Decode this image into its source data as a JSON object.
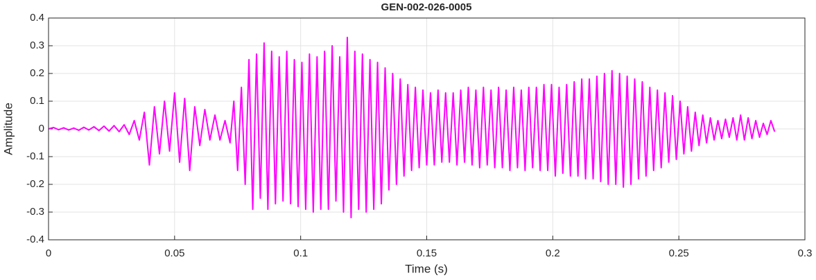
{
  "chart_data": {
    "type": "line",
    "title": "GEN-002-026-0005",
    "x_label": "Time (s)",
    "y_label": "Amplitude",
    "color": "#ff00ff",
    "grid": true,
    "xlim": [
      0,
      0.3
    ],
    "xticks": [
      0,
      0.05,
      0.1,
      0.15,
      0.2,
      0.25,
      0.3
    ],
    "ylim": [
      -0.4,
      0.4
    ],
    "yticks": [
      -0.4,
      -0.3,
      -0.2,
      -0.1,
      0,
      0.1,
      0.2,
      0.3,
      0.4
    ],
    "x": [
      0,
      0.002,
      0.004,
      0.006,
      0.008,
      0.01,
      0.012,
      0.014,
      0.016,
      0.018,
      0.02,
      0.022,
      0.024,
      0.026,
      0.028,
      0.03,
      0.032,
      0.034,
      0.036,
      0.038,
      0.04,
      0.042,
      0.044,
      0.046,
      0.048,
      0.05,
      0.052,
      0.054,
      0.056,
      0.058,
      0.06,
      0.062,
      0.064,
      0.066,
      0.068,
      0.07,
      0.072,
      0.0735,
      0.075,
      0.0765,
      0.078,
      0.0795,
      0.081,
      0.0825,
      0.084,
      0.0855,
      0.087,
      0.0885,
      0.09,
      0.0915,
      0.093,
      0.0945,
      0.096,
      0.0975,
      0.099,
      0.1005,
      0.102,
      0.1035,
      0.105,
      0.1065,
      0.108,
      0.1095,
      0.111,
      0.1125,
      0.114,
      0.1155,
      0.117,
      0.1185,
      0.12,
      0.1215,
      0.123,
      0.1245,
      0.126,
      0.1275,
      0.129,
      0.1305,
      0.132,
      0.1335,
      0.135,
      0.1365,
      0.138,
      0.1395,
      0.141,
      0.1425,
      0.144,
      0.1455,
      0.147,
      0.1485,
      0.15,
      0.1515,
      0.153,
      0.1545,
      0.156,
      0.1575,
      0.159,
      0.1605,
      0.162,
      0.1635,
      0.165,
      0.1665,
      0.168,
      0.1695,
      0.171,
      0.1725,
      0.174,
      0.1755,
      0.177,
      0.1785,
      0.18,
      0.1815,
      0.183,
      0.1845,
      0.186,
      0.1875,
      0.189,
      0.1905,
      0.192,
      0.1935,
      0.195,
      0.1965,
      0.198,
      0.1995,
      0.201,
      0.2025,
      0.204,
      0.2055,
      0.207,
      0.2085,
      0.21,
      0.2115,
      0.213,
      0.2145,
      0.216,
      0.2175,
      0.219,
      0.2205,
      0.222,
      0.2235,
      0.225,
      0.2265,
      0.228,
      0.2295,
      0.231,
      0.2325,
      0.234,
      0.2355,
      0.237,
      0.2385,
      0.24,
      0.2415,
      0.243,
      0.2445,
      0.246,
      0.2475,
      0.249,
      0.2505,
      0.252,
      0.2535,
      0.255,
      0.2565,
      0.258,
      0.2595,
      0.261,
      0.2625,
      0.264,
      0.2655,
      0.267,
      0.2685,
      0.27,
      0.2715,
      0.273,
      0.2745,
      0.276,
      0.2775,
      0.279,
      0.2805,
      0.282,
      0.2835,
      0.285,
      0.2865,
      0.288
    ],
    "values": [
      0,
      0.005,
      -0.003,
      0.004,
      -0.004,
      0.003,
      -0.005,
      0.006,
      -0.004,
      0.008,
      -0.006,
      0.01,
      -0.008,
      0.012,
      -0.01,
      0.015,
      -0.02,
      0.03,
      -0.04,
      0.06,
      -0.13,
      0.08,
      -0.09,
      0.1,
      -0.08,
      0.13,
      -0.12,
      0.11,
      -0.15,
      0.08,
      -0.06,
      0.07,
      -0.04,
      0.05,
      -0.04,
      0.03,
      -0.05,
      0.1,
      -0.15,
      0.15,
      -0.2,
      0.25,
      -0.29,
      0.27,
      -0.25,
      0.31,
      -0.29,
      0.28,
      -0.27,
      0.26,
      -0.26,
      0.28,
      -0.27,
      0.25,
      -0.28,
      0.24,
      -0.29,
      0.27,
      -0.3,
      0.26,
      -0.29,
      0.28,
      -0.29,
      0.3,
      -0.26,
      0.26,
      -0.3,
      0.33,
      -0.32,
      0.28,
      -0.29,
      0.27,
      -0.3,
      0.25,
      -0.29,
      0.24,
      -0.27,
      0.22,
      -0.22,
      0.2,
      -0.2,
      0.18,
      -0.17,
      0.16,
      -0.15,
      0.15,
      -0.14,
      0.14,
      -0.13,
      0.13,
      -0.13,
      0.14,
      -0.12,
      0.13,
      -0.12,
      0.13,
      -0.13,
      0.14,
      -0.12,
      0.15,
      -0.13,
      0.14,
      -0.14,
      0.15,
      -0.13,
      0.14,
      -0.14,
      0.15,
      -0.14,
      0.14,
      -0.15,
      0.15,
      -0.14,
      0.14,
      -0.15,
      0.15,
      -0.14,
      0.15,
      -0.15,
      0.16,
      -0.15,
      0.16,
      -0.17,
      0.15,
      -0.16,
      0.16,
      -0.17,
      0.17,
      -0.17,
      0.18,
      -0.18,
      0.18,
      -0.18,
      0.19,
      -0.19,
      0.2,
      -0.2,
      0.21,
      -0.2,
      0.2,
      -0.21,
      0.19,
      -0.2,
      0.18,
      -0.18,
      0.17,
      -0.17,
      0.15,
      -0.15,
      0.14,
      -0.14,
      0.13,
      -0.12,
      0.12,
      -0.11,
      0.1,
      -0.09,
      0.08,
      -0.08,
      0.06,
      -0.06,
      0.05,
      -0.05,
      0.04,
      -0.04,
      0.03,
      -0.035,
      0.035,
      -0.03,
      0.04,
      -0.04,
      0.05,
      -0.04,
      0.04,
      -0.035,
      0.03,
      -0.03,
      0.02,
      -0.02,
      0.03,
      -0.01
    ]
  }
}
